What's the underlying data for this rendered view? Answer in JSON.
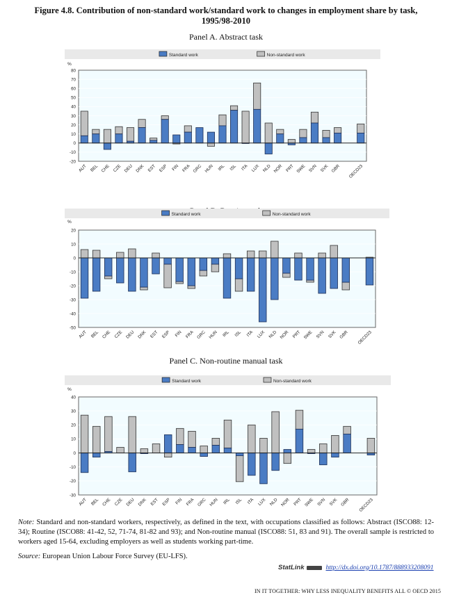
{
  "figure": {
    "title_line1": "Figure 4.8. Contribution of non-standard work/standard work to changes in employment share by task,",
    "title_line2": "1995/98-2010"
  },
  "colors": {
    "standard": "#4a7cc4",
    "non_standard": "#c0c0c0",
    "plot_bg": "#f2fcff",
    "legend_bg": "#e9e9e9"
  },
  "chart_data": [
    {
      "type": "bar",
      "stacked": true,
      "title": "Panel A. Abstract task",
      "ylabel": "%",
      "ylim": [
        -20,
        80
      ],
      "yticks": [
        80,
        70,
        60,
        50,
        40,
        30,
        20,
        10,
        0,
        -10,
        -20
      ],
      "legend": [
        "Standard work",
        "Non-standard work"
      ],
      "legend_position": "top",
      "categories": [
        "AUT",
        "BEL",
        "CHE",
        "CZE",
        "DEU",
        "DNK",
        "EST",
        "ESP",
        "FIN",
        "FRA",
        "GRC",
        "HUN",
        "IRL",
        "ISL",
        "ITA",
        "LUX",
        "NLD",
        "NOR",
        "PRT",
        "SWE",
        "SVN",
        "SVK",
        "GBR",
        "OECD23"
      ],
      "series": [
        {
          "name": "Standard work",
          "values": [
            8,
            10,
            -7,
            10,
            2,
            17,
            3,
            26,
            9,
            12,
            17,
            12,
            19,
            36,
            -0.5,
            37,
            -12,
            10,
            -2,
            6,
            22,
            6,
            11,
            11
          ]
        },
        {
          "name": "Non-standard work",
          "values": [
            27,
            5,
            15,
            8,
            15,
            9,
            2.5,
            4,
            -1,
            7,
            0,
            -3.5,
            12,
            5,
            35,
            29,
            22,
            5,
            4,
            9,
            12,
            8,
            6,
            10
          ]
        }
      ]
    },
    {
      "type": "bar",
      "stacked": true,
      "title": "Panel B. Routine task",
      "ylabel": "%",
      "ylim": [
        -50,
        20
      ],
      "yticks": [
        20,
        10,
        0,
        -10,
        -20,
        -30,
        -40,
        -50
      ],
      "legend": [
        "Standard work",
        "Non-standard work"
      ],
      "legend_position": "top",
      "categories": [
        "AUT",
        "BEL",
        "CHE",
        "CZE",
        "DEU",
        "DNK",
        "EST",
        "ESP",
        "FIN",
        "FRA",
        "GRC",
        "HUN",
        "IRL",
        "ISL",
        "ITA",
        "LUX",
        "NLD",
        "NOR",
        "PRT",
        "SWE",
        "SVN",
        "SVK",
        "GBR",
        "OECD23"
      ],
      "series": [
        {
          "name": "Standard work",
          "values": [
            -29,
            -24,
            -13,
            -18,
            -24,
            -21,
            -11.5,
            -4.5,
            -17,
            -20,
            -9,
            -4.5,
            -29,
            -15,
            -24,
            -46,
            -30,
            -11,
            -16,
            -16,
            -25.5,
            -22,
            -17.5,
            -19.5
          ]
        },
        {
          "name": "Non-standard work",
          "values": [
            6,
            5.5,
            -2,
            4,
            6.5,
            -2,
            3.5,
            -17,
            -1.5,
            -2,
            -4,
            -5.5,
            3,
            -9,
            5,
            5,
            12,
            -3,
            3.5,
            -1.5,
            3.5,
            9,
            -5.5,
            0.5
          ]
        }
      ]
    },
    {
      "type": "bar",
      "stacked": true,
      "title": "Panel C. Non-routine manual task",
      "ylabel": "%",
      "ylim": [
        -30,
        40
      ],
      "yticks": [
        40,
        30,
        20,
        10,
        0,
        -10,
        -20,
        -30
      ],
      "legend": [
        "Standard work",
        "Non-standard work"
      ],
      "legend_position": "top",
      "categories": [
        "AUT",
        "BEL",
        "CHE",
        "CZE",
        "DEU",
        "DNK",
        "EST",
        "ESP",
        "FIN",
        "FRA",
        "GRC",
        "HUN",
        "IRL",
        "ISL",
        "ITA",
        "LUX",
        "NLD",
        "NOR",
        "PRT",
        "SWE",
        "SVN",
        "SVK",
        "GBR",
        "OECD23"
      ],
      "series": [
        {
          "name": "Standard work",
          "values": [
            -14,
            -3,
            1,
            0,
            -13.5,
            -0.5,
            0,
            13,
            6,
            4,
            -2.5,
            5.5,
            3.5,
            -2,
            -16,
            -22,
            -12.5,
            2.5,
            17,
            -0.5,
            -8.5,
            -3,
            13.5,
            -1.5
          ]
        },
        {
          "name": "Non-standard work",
          "values": [
            27,
            19,
            25,
            4,
            26,
            3,
            6.5,
            -3,
            11.5,
            11.5,
            5,
            5,
            20,
            -18.5,
            20,
            10.5,
            29.5,
            -7.5,
            13.5,
            2.5,
            6.5,
            12.5,
            5.5,
            10.5
          ]
        }
      ]
    }
  ],
  "notes": {
    "note_label": "Note:",
    "note_text": " Standard and non-standard workers, respectively, as defined in the text, with occupations classified as follows: Abstract (ISCO88: 12-34); Routine (ISCO88: 41-42, 52, 71-74, 81-82 and 93); and Non-routine manual (ISCO88: 51, 83 and 91). The overall sample is restricted to workers aged 15-64, excluding employers as well as students working part-time.",
    "source_label": "Source:",
    "source_text": " European Union Labour Force Survey (EU-LFS)."
  },
  "statlink": {
    "brand": "StatLink",
    "url": "http://dx.doi.org/10.1787/888933208091"
  },
  "footer": "IN IT TOGETHER: WHY LESS INEQUALITY BENEFITS ALL © OECD 2015"
}
